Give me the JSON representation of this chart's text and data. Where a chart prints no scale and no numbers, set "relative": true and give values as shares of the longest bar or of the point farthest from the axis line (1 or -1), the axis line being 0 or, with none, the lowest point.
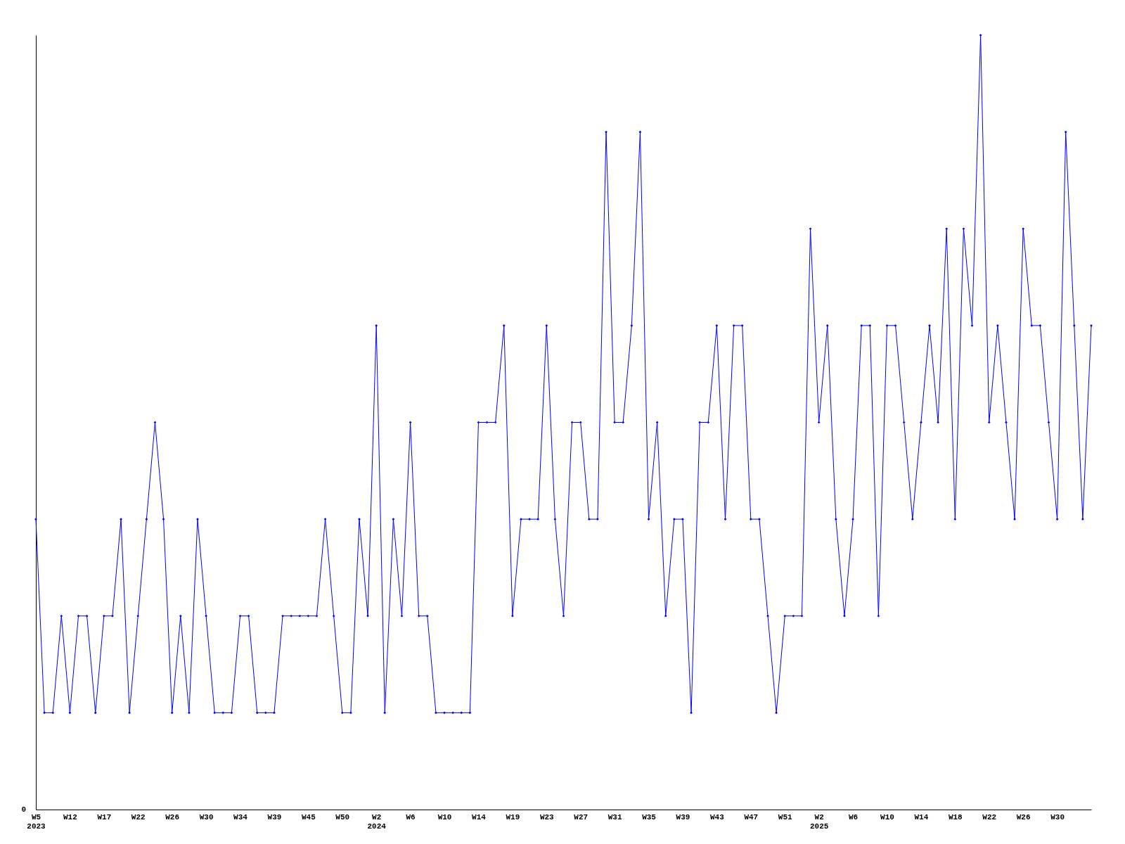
{
  "chart_data": {
    "type": "line",
    "relative": true,
    "marker": "diamond",
    "line_style": "solid",
    "grid": false,
    "annotations": [
      "0"
    ],
    "categories": [
      "W5\n2023",
      null,
      null,
      null,
      "W12",
      null,
      null,
      null,
      "W17",
      null,
      null,
      null,
      "W22",
      null,
      null,
      null,
      "W26",
      null,
      null,
      null,
      "W30",
      null,
      null,
      null,
      "W34",
      null,
      null,
      null,
      "W39",
      null,
      null,
      null,
      "W45",
      null,
      null,
      null,
      "W50",
      null,
      null,
      null,
      "W2\n2024",
      null,
      null,
      null,
      "W6",
      null,
      null,
      null,
      "W10",
      null,
      null,
      null,
      "W14",
      null,
      null,
      null,
      "W19",
      null,
      null,
      null,
      "W23",
      null,
      null,
      null,
      "W27",
      null,
      null,
      null,
      "W31",
      null,
      null,
      null,
      "W35",
      null,
      null,
      null,
      "W39",
      null,
      null,
      null,
      "W43",
      null,
      null,
      null,
      "W47",
      null,
      null,
      null,
      "W51",
      null,
      null,
      null,
      "W2\n2025",
      null,
      null,
      null,
      "W6",
      null,
      null,
      null,
      "W10",
      null,
      null,
      null,
      "W14",
      null,
      null,
      null,
      "W18",
      null,
      null,
      null,
      "W22",
      null,
      null,
      null,
      "W26",
      null,
      null,
      null,
      "W30",
      null,
      null,
      null,
      null
    ],
    "series": [
      {
        "color": "#0000ff",
        "values": [
          0.375,
          0.125,
          0.125,
          0.25,
          0.125,
          0.25,
          0.25,
          0.125,
          0.25,
          0.25,
          0.375,
          0.125,
          0.25,
          0.375,
          0.5,
          0.375,
          0.125,
          0.25,
          0.125,
          0.375,
          0.25,
          0.125,
          0.125,
          0.125,
          0.25,
          0.25,
          0.125,
          0.125,
          0.125,
          0.25,
          0.25,
          0.25,
          0.25,
          0.25,
          0.375,
          0.25,
          0.125,
          0.125,
          0.375,
          0.25,
          0.625,
          0.125,
          0.375,
          0.25,
          0.5,
          0.25,
          0.25,
          0.125,
          0.125,
          0.125,
          0.125,
          0.125,
          0.5,
          0.5,
          0.5,
          0.625,
          0.25,
          0.375,
          0.375,
          0.375,
          0.625,
          0.375,
          0.25,
          0.5,
          0.5,
          0.375,
          0.375,
          0.875,
          0.5,
          0.5,
          0.625,
          0.875,
          0.375,
          0.5,
          0.25,
          0.375,
          0.375,
          0.125,
          0.5,
          0.5,
          0.625,
          0.375,
          0.625,
          0.625,
          0.375,
          0.375,
          0.25,
          0.125,
          0.25,
          0.25,
          0.25,
          0.75,
          0.5,
          0.625,
          0.375,
          0.25,
          0.375,
          0.625,
          0.625,
          0.25,
          0.625,
          0.625,
          0.5,
          0.375,
          0.5,
          0.625,
          0.5,
          0.75,
          0.375,
          0.75,
          0.625,
          1,
          0.5,
          0.625,
          0.5,
          0.375,
          0.75,
          0.625,
          0.625,
          0.5,
          0.375,
          0.875,
          0.625,
          0.375,
          0.625
        ]
      }
    ]
  }
}
